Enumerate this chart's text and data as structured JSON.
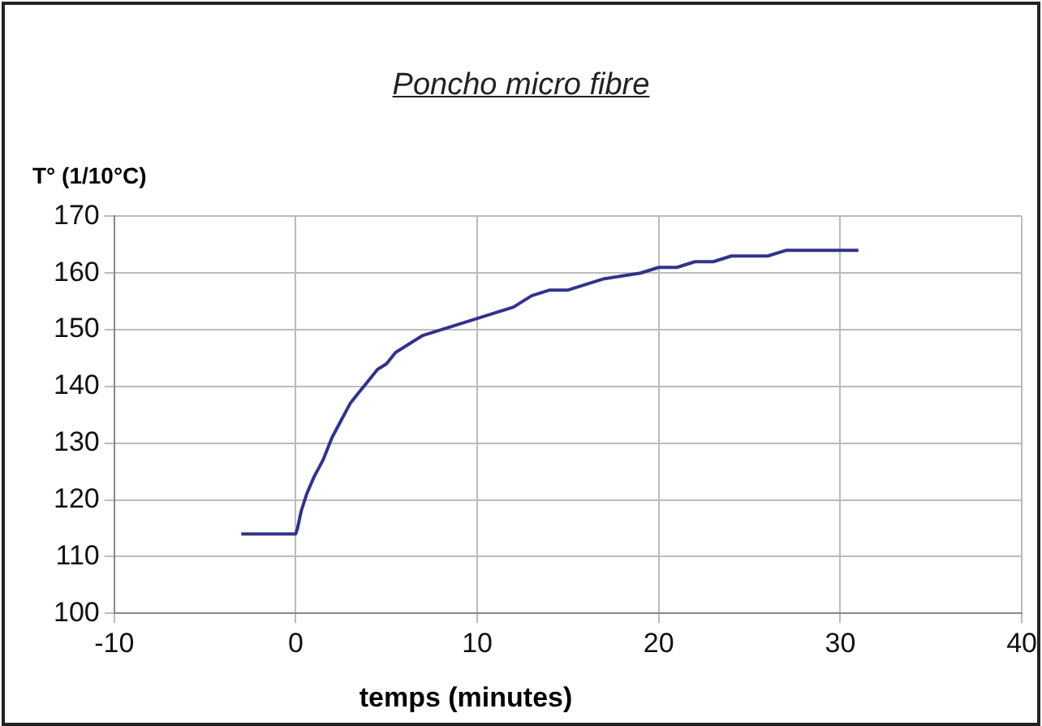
{
  "chart_data": {
    "type": "line",
    "title": "Poncho micro fibre",
    "ylabel": "T° (1/10°C)",
    "xlabel": "temps (minutes)",
    "series": [
      {
        "color": "#33338a",
        "x": [
          -3,
          0,
          0.1,
          0.3,
          0.6,
          1,
          1.5,
          2,
          2.5,
          3,
          3.5,
          4,
          4.5,
          5,
          5.5,
          6,
          7,
          8,
          9,
          10,
          11,
          12,
          13,
          14,
          15,
          16,
          17,
          18,
          19,
          20,
          21,
          22,
          23,
          24,
          25,
          26,
          27,
          28,
          29,
          30,
          31
        ],
        "values": [
          114,
          114,
          115,
          118,
          121,
          124,
          127,
          131,
          134,
          137,
          139,
          141,
          143,
          144,
          146,
          147,
          149,
          150,
          151,
          152,
          153,
          154,
          156,
          157,
          157,
          158,
          159,
          159.5,
          160,
          161,
          161,
          162,
          162,
          163,
          163,
          163,
          164,
          164,
          164,
          164,
          164
        ]
      }
    ],
    "xlim": [
      -10,
      40
    ],
    "xticks": [
      -10,
      0,
      10,
      20,
      30,
      40
    ],
    "ylim": [
      100,
      170
    ],
    "yticks": [
      100,
      110,
      120,
      130,
      140,
      150,
      160,
      170
    ],
    "grid": true,
    "marker": "none",
    "line_style": "solid",
    "legend": false
  }
}
